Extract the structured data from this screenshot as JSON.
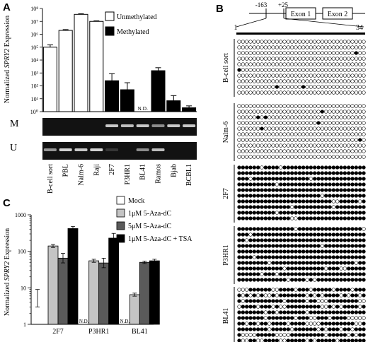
{
  "panels": {
    "a": "A",
    "b": "B",
    "c": "C"
  },
  "chart_data": [
    {
      "type": "bar",
      "panel": "A",
      "ylabel_prefix": "Normalized ",
      "ylabel_gene": "SPRY2",
      "ylabel_suffix": " Expression",
      "yscale": "log",
      "ylim": [
        1,
        100000000
      ],
      "yticks": [
        "10⁰",
        "10¹",
        "10²",
        "10³",
        "10⁴",
        "10⁵",
        "10⁶",
        "10⁷",
        "10⁸"
      ],
      "categories": [
        "B-cell sort",
        "PBL",
        "Nalm-6",
        "Raji",
        "2F7",
        "P3HR1",
        "BL41",
        "Ramos",
        "Bjab",
        "BCBL1"
      ],
      "values": [
        100000,
        2000000,
        35000000,
        10000000,
        250,
        50,
        null,
        1500,
        7,
        2
      ],
      "errors": [
        1.5,
        1.15,
        1.12,
        1.1,
        3.5,
        3.5,
        null,
        1.7,
        2.5,
        1.4
      ],
      "status": [
        "Unmethylated",
        "Unmethylated",
        "Unmethylated",
        "Unmethylated",
        "Methylated",
        "Methylated",
        "Methylated",
        "Methylated",
        "Methylated",
        "Methylated"
      ],
      "na_label": "N.D.",
      "legend": [
        "Unmethylated",
        "Methylated"
      ],
      "legend_position": "top-right",
      "gel_rows": [
        {
          "label": "M",
          "intensity": [
            0,
            0,
            0,
            0,
            0.85,
            0.8,
            0.85,
            0.55,
            0.85,
            0.85
          ]
        },
        {
          "label": "U",
          "intensity": [
            0.6,
            0.9,
            0.85,
            0.9,
            0.12,
            0,
            0.55,
            0.8,
            0,
            0
          ]
        }
      ]
    },
    {
      "type": "bar",
      "panel": "C",
      "ylabel_prefix": "Normalized ",
      "ylabel_gene": "SPRY2",
      "ylabel_suffix": " Expression",
      "yscale": "log",
      "ylim": [
        1,
        1000
      ],
      "yticks": [
        "1",
        "10",
        "100",
        "1000"
      ],
      "categories": [
        "2F7",
        "P3HR1",
        "BL41"
      ],
      "series": [
        {
          "name": "Mock",
          "color": "#ffffff",
          "values": [
            null,
            null,
            null
          ]
        },
        {
          "name": "1μM 5-Aza-dC",
          "color": "#c4c4c4",
          "values": [
            140,
            55,
            6.5
          ]
        },
        {
          "name": "5μM 5-Aza-dC",
          "color": "#5a5a5a",
          "values": [
            65,
            48,
            50
          ]
        },
        {
          "name": "1μM 5-Aza-dC + TSA",
          "color": "#000000",
          "values": [
            420,
            230,
            55
          ]
        }
      ],
      "errors": [
        [
          null,
          null,
          null
        ],
        [
          1.1,
          1.1,
          1.1
        ],
        [
          1.35,
          1.35,
          1.08
        ],
        [
          1.15,
          1.35,
          1.1
        ]
      ],
      "na_label": "N.D.",
      "legend_position": "top-right",
      "bracket_range": [
        3,
        9
      ]
    },
    {
      "type": "diagram",
      "panel": "B",
      "gene_map": {
        "left_label": "-163",
        "right_label": "+25",
        "exons": [
          "Exon 1",
          "Exon 2"
        ],
        "range_start": "1",
        "range_end": "34"
      },
      "samples": [
        "B-cell sort",
        "Nalm-6",
        "2F7",
        "P3HR1",
        "BL41"
      ],
      "cpg_sites": 34,
      "clones_per_sample": 10,
      "methylated_fraction": [
        0.005,
        0.02,
        0.97,
        0.96,
        0.75
      ]
    }
  ]
}
